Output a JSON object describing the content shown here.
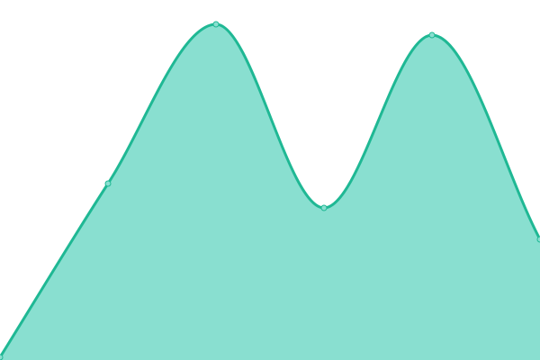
{
  "chart_data": {
    "type": "area",
    "x": [
      0,
      1,
      2,
      3,
      4,
      5
    ],
    "values": [
      3,
      196,
      373,
      169,
      361,
      134
    ],
    "ylim": [
      0,
      400
    ],
    "xlim": [
      0,
      5
    ],
    "grid": false,
    "axes_visible": false,
    "curve": "smooth",
    "colors": {
      "line": "#1fb894",
      "fill": "#89dfd0",
      "marker": "#89dfd0"
    }
  }
}
